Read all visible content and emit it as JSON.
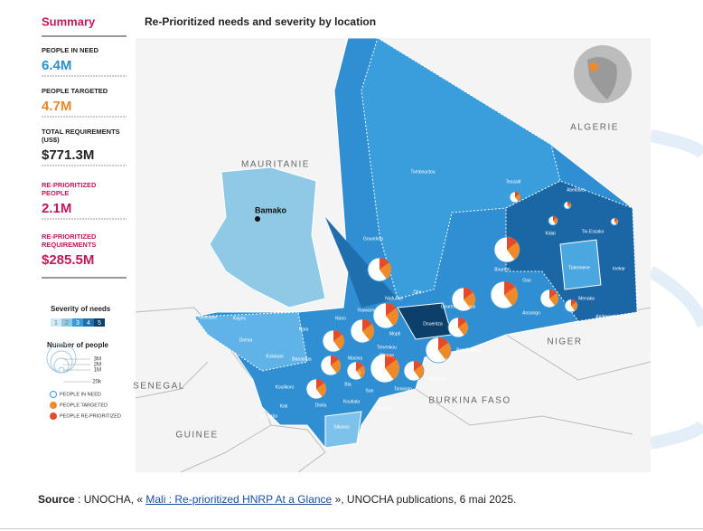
{
  "summary": {
    "title": "Summary",
    "items": [
      {
        "label": "PEOPLE IN NEED",
        "value": "6.4M"
      },
      {
        "label": "PEOPLE TARGETED",
        "value": "4.7M"
      },
      {
        "label": "TOTAL REQUIREMENTS (US$)",
        "value": "$771.3M"
      },
      {
        "label": "RE-PRIORITIZED PEOPLE",
        "value": "2.1M"
      },
      {
        "label": "RE-PRIORITIZED REQUIREMENTS",
        "value": "$285.5M"
      }
    ]
  },
  "legend": {
    "severity_title": "Severity of needs",
    "severity_levels": [
      "1",
      "2",
      "3",
      "4",
      "5"
    ],
    "people_title": "Number of people",
    "sizes": [
      "3M",
      "2M",
      "1M",
      "20k"
    ],
    "keys": [
      "PEOPLE IN NEED",
      "PEOPLE TARGETED",
      "PEOPLE RE-PRIORITIZED"
    ]
  },
  "map": {
    "title": "Re-Prioritized needs and severity by location",
    "countries": [
      "MAURITANIE",
      "ALGERIE",
      "NIGER",
      "BURKINA FASO",
      "SENEGAL",
      "GUINEE"
    ],
    "capital": "Bamako",
    "regions": [
      "Tombouctou",
      "Tessalit",
      "Abeibara",
      "Kidal",
      "Tin-Essako",
      "Tidermene",
      "Inekar",
      "Menaka",
      "Anderamboukane",
      "Goundam",
      "Gourma-Rharous",
      "Bourem",
      "Gao",
      "Ansongo",
      "Dire",
      "Niafunke",
      "Youwarou",
      "Douentza",
      "Mopti",
      "Tenenkou",
      "Djenne",
      "Bandiagara",
      "Bankass",
      "Koro",
      "Macina",
      "San",
      "Tominian",
      "Segou",
      "Bla",
      "Yorosso",
      "Koutiala",
      "Dioila",
      "Sikasso",
      "Kati",
      "Kangaba",
      "Koulikoro",
      "Banamba",
      "Kolokani",
      "Nara",
      "Nioro",
      "Diema",
      "Yelimane",
      "Kayes"
    ]
  },
  "source": {
    "prefix": "Source",
    "mid": " : UNOCHA, « ",
    "link": "Mali : Re-prioritized HNRP At a Glance",
    "suffix": " », UNOCHA publications, 6 mai 2025."
  }
}
